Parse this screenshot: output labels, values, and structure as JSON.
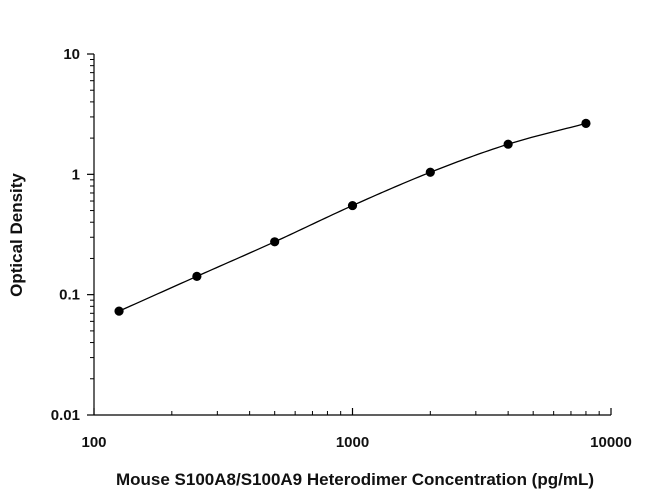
{
  "chart_data": {
    "type": "scatter",
    "title": "",
    "xlabel": "Mouse S100A8/S100A9 Heterodimer Concentration (pg/mL)",
    "ylabel": "Optical Density",
    "x_scale": "log",
    "y_scale": "log",
    "xlim": [
      100,
      10000
    ],
    "ylim": [
      0.01,
      10
    ],
    "x_ticks": [
      {
        "value": 100,
        "label": "100"
      },
      {
        "value": 1000,
        "label": "1000"
      },
      {
        "value": 10000,
        "label": "10000"
      }
    ],
    "y_ticks": [
      {
        "value": 0.01,
        "label": "0.01"
      },
      {
        "value": 0.1,
        "label": "0.1"
      },
      {
        "value": 1,
        "label": "1"
      },
      {
        "value": 10,
        "label": "10"
      }
    ],
    "grid": false,
    "legend": "none",
    "series": [
      {
        "points": [
          {
            "x": 125,
            "y": 0.073
          },
          {
            "x": 250,
            "y": 0.142
          },
          {
            "x": 500,
            "y": 0.275
          },
          {
            "x": 1000,
            "y": 0.55
          },
          {
            "x": 2000,
            "y": 1.04
          },
          {
            "x": 4000,
            "y": 1.78
          },
          {
            "x": 8000,
            "y": 2.65
          }
        ],
        "fit_curve": true,
        "marker_color": "#000000",
        "line_color": "#000000"
      }
    ]
  }
}
